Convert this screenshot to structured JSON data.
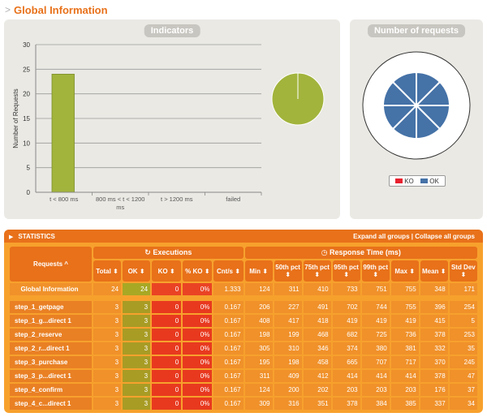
{
  "page": {
    "title": "Global Information"
  },
  "indicators": {
    "title": "Indicators"
  },
  "requests_panel": {
    "title": "Number of requests",
    "legend": [
      {
        "label": "KO",
        "color": "#e8202e"
      },
      {
        "label": "OK",
        "color": "#4572a7"
      }
    ]
  },
  "chart_data": [
    {
      "type": "bar",
      "title": "Indicators",
      "ylabel": "Number of Requests",
      "xlabel": "",
      "categories": [
        "t < 800 ms",
        "800 ms < t < 1200 ms",
        "t > 1200 ms",
        "failed"
      ],
      "values": [
        24,
        0,
        0,
        0
      ],
      "ylim": [
        0,
        30
      ],
      "yticks": [
        0,
        5,
        10,
        15,
        20,
        25,
        30
      ],
      "grid": true,
      "color": "#a2b43c"
    },
    {
      "type": "pie",
      "title": "",
      "values": [
        24,
        0
      ],
      "labels": [
        "OK",
        "KO"
      ],
      "colors": [
        "#a2b43c",
        "#e8202e"
      ]
    },
    {
      "type": "pie",
      "title": "Number of requests",
      "values": [
        3,
        3,
        3,
        3,
        3,
        3,
        3,
        3
      ],
      "colors": [
        "#4572a7"
      ],
      "legend": [
        "KO",
        "OK"
      ]
    }
  ],
  "stats": {
    "title": "STATISTICS",
    "expand": "Expand all groups",
    "sep": " | ",
    "collapse": "Collapse all groups",
    "group_exec": "Executions",
    "group_rt": "Response Time (ms)",
    "headers": [
      "Requests ^",
      "Total ⬍",
      "OK ⬍",
      "KO ⬍",
      "% KO ⬍",
      "Cnt/s ⬍",
      "Min ⬍",
      "50th pct ⬍",
      "75th pct ⬍",
      "95th pct ⬍",
      "99th pct ⬍",
      "Max ⬍",
      "Mean ⬍",
      "Std Dev ⬍"
    ],
    "global": [
      "Global Information",
      "24",
      "24",
      "0",
      "0%",
      "1.333",
      "124",
      "311",
      "410",
      "733",
      "751",
      "755",
      "348",
      "171"
    ],
    "rows": [
      [
        "step_1_getpage",
        "3",
        "3",
        "0",
        "0%",
        "0.167",
        "206",
        "227",
        "491",
        "702",
        "744",
        "755",
        "396",
        "254"
      ],
      [
        "step_1_g...direct 1",
        "3",
        "3",
        "0",
        "0%",
        "0.167",
        "408",
        "417",
        "418",
        "419",
        "419",
        "419",
        "415",
        "5"
      ],
      [
        "step_2_reserve",
        "3",
        "3",
        "0",
        "0%",
        "0.167",
        "198",
        "199",
        "468",
        "682",
        "725",
        "736",
        "378",
        "253"
      ],
      [
        "step_2_r...direct 1",
        "3",
        "3",
        "0",
        "0%",
        "0.167",
        "305",
        "310",
        "346",
        "374",
        "380",
        "381",
        "332",
        "35"
      ],
      [
        "step_3_purchase",
        "3",
        "3",
        "0",
        "0%",
        "0.167",
        "195",
        "198",
        "458",
        "665",
        "707",
        "717",
        "370",
        "245"
      ],
      [
        "step_3_p...direct 1",
        "3",
        "3",
        "0",
        "0%",
        "0.167",
        "311",
        "409",
        "412",
        "414",
        "414",
        "414",
        "378",
        "47"
      ],
      [
        "step_4_confirm",
        "3",
        "3",
        "0",
        "0%",
        "0.167",
        "124",
        "200",
        "202",
        "203",
        "203",
        "203",
        "176",
        "37"
      ],
      [
        "step_4_c...direct 1",
        "3",
        "3",
        "0",
        "0%",
        "0.167",
        "309",
        "316",
        "351",
        "378",
        "384",
        "385",
        "337",
        "34"
      ]
    ]
  }
}
